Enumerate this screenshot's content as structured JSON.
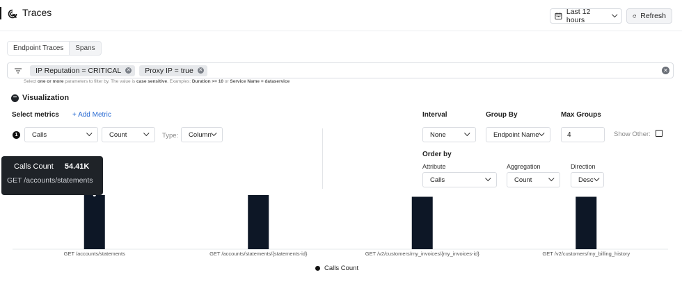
{
  "header": {
    "title": "Traces",
    "time_range": "Last 12 hours",
    "refresh": "Refresh"
  },
  "tabs": [
    {
      "label": "Endpoint Traces",
      "active": true
    },
    {
      "label": "Spans",
      "active": false
    }
  ],
  "filters": {
    "chips": [
      "IP Reputation = CRITICAL",
      "Proxy IP = true"
    ],
    "hint": {
      "part1": "Select ",
      "bold1": "one or more",
      "part2": " parameters to filter by. The value is ",
      "bold2": "case sensitive",
      "part3": ". Examples: ",
      "bold3": "Duration >= 10",
      "part4": " or ",
      "bold4": "Service Name = dataservice"
    }
  },
  "visualization": {
    "label": "Visualization",
    "select_metrics": "Select metrics",
    "add_metric": "+ Add Metric",
    "metric_index": "1",
    "metric": "Calls",
    "aggregation": "Count",
    "type_label": "Type:",
    "type": "Column",
    "interval_label": "Interval",
    "interval": "None",
    "group_by_label": "Group By",
    "group_by": "Endpoint Name",
    "max_groups_label": "Max Groups",
    "max_groups": "4",
    "show_other": "Show Other:",
    "show_other_checked": false,
    "order_by_label": "Order by",
    "order_attribute_label": "Attribute",
    "order_attribute": "Calls",
    "order_aggregation_label": "Aggregation",
    "order_aggregation": "Count",
    "direction_label": "Direction",
    "direction": "Desc"
  },
  "tooltip": {
    "label": "Calls Count",
    "value": "54.41K",
    "category": "GET /accounts/statements"
  },
  "colors": {
    "bar": "#0d1726",
    "accent_link": "#2b6cd3"
  },
  "chart_data": {
    "type": "bar",
    "categories": [
      "GET /accounts/statements",
      "GET /accounts/statements/{statements-id}",
      "GET /v2/customers/my_invoices/{my_invoices-id}",
      "GET /v2/customers/my_billing_history"
    ],
    "series": [
      {
        "name": "Calls Count",
        "values": [
          54410,
          54400,
          52700,
          52700
        ]
      }
    ],
    "ylim": [
      0,
      54410
    ],
    "grid": false,
    "legend": "bottom"
  }
}
